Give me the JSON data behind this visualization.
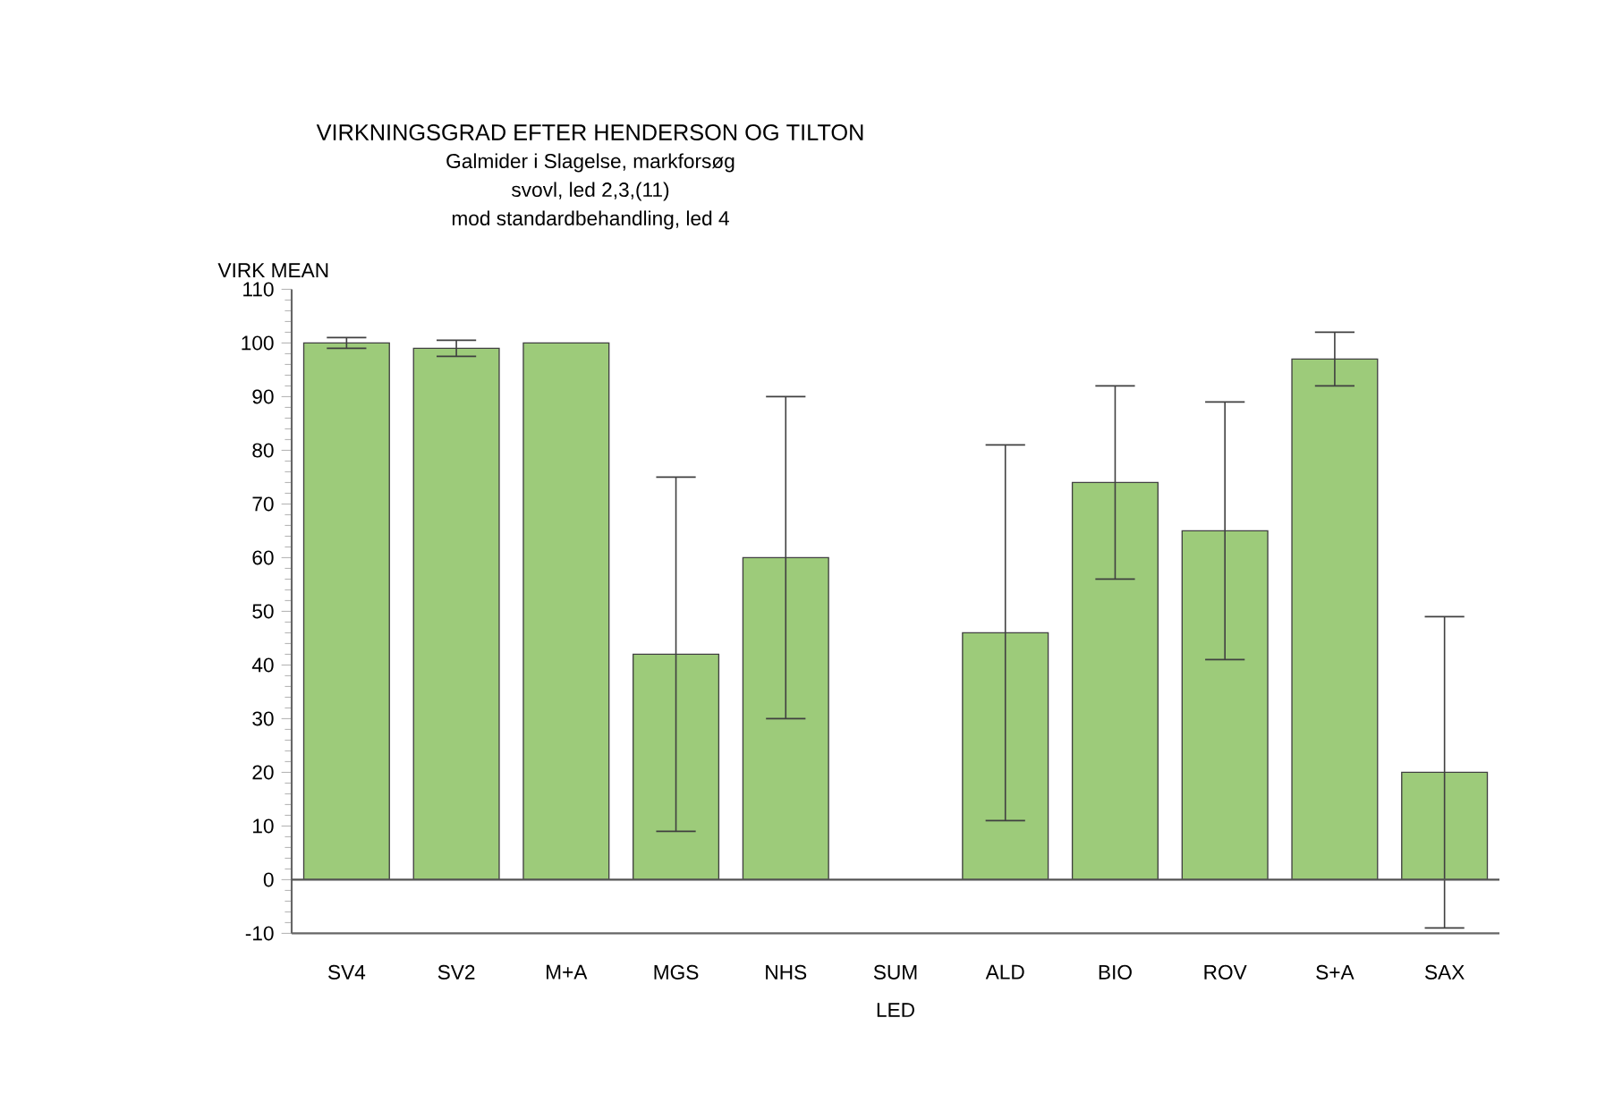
{
  "chart_data": {
    "type": "bar",
    "title": "VIRKNINGSGRAD EFTER HENDERSON OG TILTON",
    "subtitle": "Galmider i Slagelse, markforsøg",
    "annotations": [
      "svovl, led 2,3,(11)",
      "mod standardbehandling, led 4"
    ],
    "xlabel": "LED",
    "ylabel": "VIRK MEAN",
    "categories": [
      "SV4",
      "SV2",
      "M+A",
      "MGS",
      "NHS",
      "SUM",
      "ALD",
      "BIO",
      "ROV",
      "S+A",
      "SAX"
    ],
    "values": [
      100,
      99,
      100,
      42,
      60,
      0,
      46,
      74,
      65,
      97,
      20
    ],
    "errors": [
      1,
      1.5,
      null,
      33,
      30,
      null,
      35,
      18,
      24,
      5,
      29
    ],
    "color": "#9dcb7a",
    "ylim": [
      -10,
      110
    ],
    "yticks": [
      -10,
      0,
      10,
      20,
      30,
      40,
      50,
      60,
      70,
      80,
      90,
      100,
      110
    ],
    "ref_lines": [
      {
        "axis": "y",
        "value": 0,
        "color": "#555555"
      }
    ],
    "grid": false
  }
}
